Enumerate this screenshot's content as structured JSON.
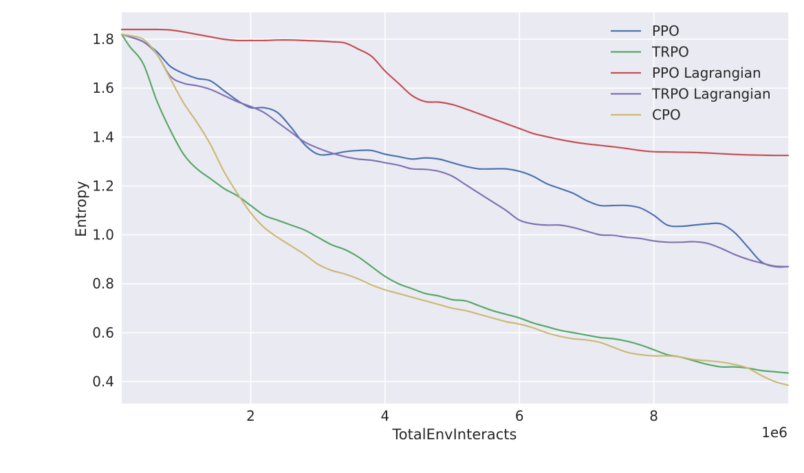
{
  "chart_data": {
    "type": "line",
    "xlabel": "TotalEnvInteracts",
    "ylabel": "Entropy",
    "x_offset_label": "1e6",
    "xlim": [
      0.08,
      10.0
    ],
    "ylim": [
      0.31,
      1.91
    ],
    "x_ticks": [
      2,
      4,
      6,
      8
    ],
    "x_tick_labels": [
      "2",
      "4",
      "6",
      "8"
    ],
    "y_ticks": [
      0.4,
      0.6,
      0.8,
      1.0,
      1.2,
      1.4,
      1.6,
      1.8
    ],
    "y_tick_labels": [
      "0.4",
      "0.6",
      "0.8",
      "1.0",
      "1.2",
      "1.4",
      "1.6",
      "1.8"
    ],
    "grid": true,
    "legend_position": "top-right",
    "x": [
      0.08,
      0.2,
      0.4,
      0.6,
      0.8,
      1.0,
      1.2,
      1.4,
      1.6,
      1.8,
      2.0,
      2.2,
      2.4,
      2.6,
      2.8,
      3.0,
      3.2,
      3.4,
      3.6,
      3.8,
      4.0,
      4.2,
      4.4,
      4.6,
      4.8,
      5.0,
      5.2,
      5.4,
      5.6,
      5.8,
      6.0,
      6.2,
      6.4,
      6.6,
      6.8,
      7.0,
      7.2,
      7.4,
      7.6,
      7.8,
      8.0,
      8.2,
      8.4,
      8.6,
      8.8,
      9.0,
      9.2,
      9.4,
      9.6,
      9.8,
      10.0
    ],
    "series": [
      {
        "name": "PPO",
        "color": "#4C72B0",
        "values": [
          1.82,
          1.81,
          1.79,
          1.75,
          1.69,
          1.66,
          1.64,
          1.63,
          1.59,
          1.55,
          1.52,
          1.52,
          1.5,
          1.44,
          1.37,
          1.33,
          1.33,
          1.34,
          1.345,
          1.345,
          1.33,
          1.32,
          1.31,
          1.315,
          1.31,
          1.295,
          1.28,
          1.27,
          1.27,
          1.27,
          1.26,
          1.24,
          1.21,
          1.19,
          1.17,
          1.14,
          1.12,
          1.12,
          1.12,
          1.11,
          1.08,
          1.04,
          1.035,
          1.04,
          1.045,
          1.045,
          1.01,
          0.95,
          0.89,
          0.87,
          0.87
        ]
      },
      {
        "name": "TRPO",
        "color": "#55A868",
        "values": [
          1.82,
          1.77,
          1.7,
          1.55,
          1.43,
          1.33,
          1.27,
          1.23,
          1.19,
          1.16,
          1.12,
          1.08,
          1.06,
          1.04,
          1.02,
          0.99,
          0.96,
          0.94,
          0.91,
          0.87,
          0.83,
          0.8,
          0.78,
          0.76,
          0.75,
          0.735,
          0.73,
          0.71,
          0.69,
          0.675,
          0.66,
          0.64,
          0.625,
          0.61,
          0.6,
          0.59,
          0.58,
          0.575,
          0.565,
          0.55,
          0.53,
          0.51,
          0.5,
          0.485,
          0.47,
          0.46,
          0.46,
          0.455,
          0.445,
          0.44,
          0.435
        ]
      },
      {
        "name": "PPO Lagrangian",
        "color": "#C44E52",
        "values": [
          1.84,
          1.84,
          1.84,
          1.84,
          1.838,
          1.83,
          1.82,
          1.81,
          1.8,
          1.795,
          1.795,
          1.795,
          1.797,
          1.797,
          1.795,
          1.793,
          1.79,
          1.785,
          1.76,
          1.73,
          1.67,
          1.62,
          1.57,
          1.545,
          1.543,
          1.533,
          1.515,
          1.495,
          1.475,
          1.455,
          1.435,
          1.415,
          1.402,
          1.39,
          1.38,
          1.372,
          1.366,
          1.36,
          1.353,
          1.345,
          1.34,
          1.339,
          1.338,
          1.337,
          1.335,
          1.332,
          1.329,
          1.327,
          1.326,
          1.325,
          1.325
        ]
      },
      {
        "name": "TRPO Lagrangian",
        "color": "#8172B2",
        "values": [
          1.82,
          1.81,
          1.79,
          1.74,
          1.65,
          1.62,
          1.61,
          1.595,
          1.57,
          1.545,
          1.525,
          1.5,
          1.46,
          1.42,
          1.38,
          1.355,
          1.335,
          1.32,
          1.31,
          1.305,
          1.295,
          1.285,
          1.27,
          1.268,
          1.26,
          1.24,
          1.205,
          1.17,
          1.135,
          1.1,
          1.06,
          1.045,
          1.04,
          1.04,
          1.03,
          1.015,
          1.0,
          0.998,
          0.99,
          0.985,
          0.975,
          0.97,
          0.97,
          0.972,
          0.965,
          0.945,
          0.92,
          0.9,
          0.885,
          0.872,
          0.87
        ]
      },
      {
        "name": "CPO",
        "color": "#CCB974",
        "values": [
          1.82,
          1.815,
          1.8,
          1.74,
          1.64,
          1.54,
          1.46,
          1.37,
          1.26,
          1.17,
          1.09,
          1.03,
          0.99,
          0.955,
          0.92,
          0.88,
          0.855,
          0.84,
          0.82,
          0.795,
          0.775,
          0.76,
          0.745,
          0.73,
          0.715,
          0.7,
          0.69,
          0.675,
          0.66,
          0.645,
          0.635,
          0.62,
          0.6,
          0.585,
          0.575,
          0.57,
          0.56,
          0.54,
          0.52,
          0.51,
          0.505,
          0.505,
          0.5,
          0.49,
          0.485,
          0.48,
          0.47,
          0.455,
          0.425,
          0.4,
          0.385
        ]
      }
    ]
  }
}
